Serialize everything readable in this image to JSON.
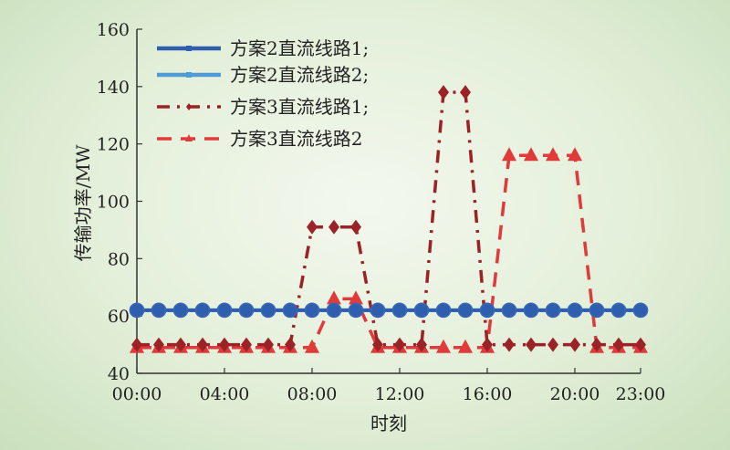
{
  "chart_data": {
    "type": "line",
    "xlabel": "时刻",
    "ylabel": "传输功率/MW",
    "ylim": [
      40,
      160
    ],
    "yticks": [
      40,
      60,
      80,
      100,
      120,
      140,
      160
    ],
    "xlim": [
      0,
      23
    ],
    "xtick_labels": [
      "00:00",
      "04:00",
      "08:00",
      "12:00",
      "16:00",
      "20:00",
      "23:00"
    ],
    "xtick_hours": [
      0,
      4,
      8,
      12,
      16,
      20,
      23
    ],
    "grid": false,
    "legend_position": "top-left",
    "series": [
      {
        "name": "方案2直流线路1;",
        "color": "#2e5fae",
        "style": "solid",
        "marker": "circle",
        "x": [
          0,
          1,
          2,
          3,
          4,
          5,
          6,
          7,
          8,
          9,
          10,
          11,
          12,
          13,
          14,
          15,
          16,
          17,
          18,
          19,
          20,
          21,
          22,
          23
        ],
        "y": [
          62,
          62,
          62,
          62,
          62,
          62,
          62,
          62,
          62,
          62,
          62,
          62,
          62,
          62,
          62,
          62,
          62,
          62,
          62,
          62,
          62,
          62,
          62,
          62
        ]
      },
      {
        "name": "方案2直流线路2;",
        "color": "#4f9bd6",
        "style": "solid",
        "marker": "circle",
        "x": [
          0,
          1,
          2,
          3,
          4,
          5,
          6,
          7,
          8,
          9,
          10,
          11,
          12,
          13,
          14,
          15,
          16,
          17,
          18,
          19,
          20,
          21,
          22,
          23
        ],
        "y": [
          62,
          62,
          62,
          62,
          62,
          62,
          62,
          62,
          62,
          62,
          62,
          62,
          62,
          62,
          62,
          62,
          62,
          62,
          62,
          62,
          62,
          62,
          62,
          62
        ]
      },
      {
        "name": "方案3直流线路1;",
        "color": "#9b2226",
        "style": "dashdot",
        "marker": "diamond",
        "x": [
          0,
          1,
          2,
          3,
          4,
          5,
          6,
          7,
          8,
          9,
          10,
          11,
          12,
          13,
          14,
          15,
          16,
          17,
          18,
          19,
          20,
          21,
          22,
          23
        ],
        "y": [
          50,
          50,
          50,
          50,
          50,
          50,
          50,
          50,
          91,
          91,
          91,
          50,
          50,
          50,
          138,
          138,
          50,
          50,
          50,
          50,
          50,
          50,
          50,
          50
        ]
      },
      {
        "name": "方案3直流线路2",
        "color": "#e03a3a",
        "style": "dashed",
        "marker": "triangle",
        "x": [
          0,
          1,
          2,
          3,
          4,
          5,
          6,
          7,
          8,
          9,
          10,
          11,
          12,
          13,
          14,
          15,
          16,
          17,
          18,
          19,
          20,
          21,
          22,
          23
        ],
        "y": [
          49,
          49,
          49,
          49,
          49,
          49,
          49,
          49,
          49,
          66,
          66,
          49,
          49,
          49,
          49,
          49,
          49,
          116,
          116,
          116,
          116,
          49,
          49,
          49
        ]
      }
    ]
  }
}
